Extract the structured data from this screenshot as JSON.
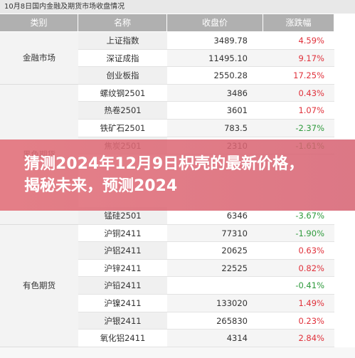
{
  "table": {
    "title": "10月8日国内金融及期货市场收盘情况",
    "headers": [
      "类别",
      "名称",
      "收盘价",
      "涨跌幅"
    ],
    "groups": [
      {
        "label": "金融市场",
        "rows": [
          [
            "上证指数",
            "3489.78",
            "4.59%"
          ],
          [
            "深证成指",
            "11495.10",
            "9.17%"
          ],
          [
            "创业板指",
            "2550.28",
            "17.25%"
          ]
        ]
      },
      {
        "label": "黑色期货",
        "rows": [
          [
            "螺纹钢2501",
            "3486",
            "0.43%"
          ],
          [
            "热卷2501",
            "3601",
            "1.07%"
          ],
          [
            "铁矿石2501",
            "783.5",
            "-2.37%"
          ],
          [
            "焦炭2501",
            "2310",
            "-1.61%"
          ],
          [
            "锰硅2501",
            "6346",
            "-3.67%"
          ]
        ]
      },
      {
        "label": "有色期货",
        "rows": [
          [
            "沪铜2411",
            "77310",
            "-1.90%"
          ],
          [
            "沪铝2411",
            "20625",
            "0.63%"
          ],
          [
            "沪锌2411",
            "22525",
            "0.82%"
          ],
          [
            "沪铅2411",
            null,
            "-0.41%"
          ],
          [
            "沪镍2411",
            "133020",
            "1.49%"
          ],
          [
            "沪银2411",
            "265830",
            "0.23%"
          ],
          [
            "氧化铝2411",
            "4314",
            "2.84%"
          ]
        ]
      }
    ]
  },
  "banner": {
    "lines": [
      "猜测2024年12月9日枳壳的最新价格，",
      "揭秘未来，预测2024"
    ]
  }
}
